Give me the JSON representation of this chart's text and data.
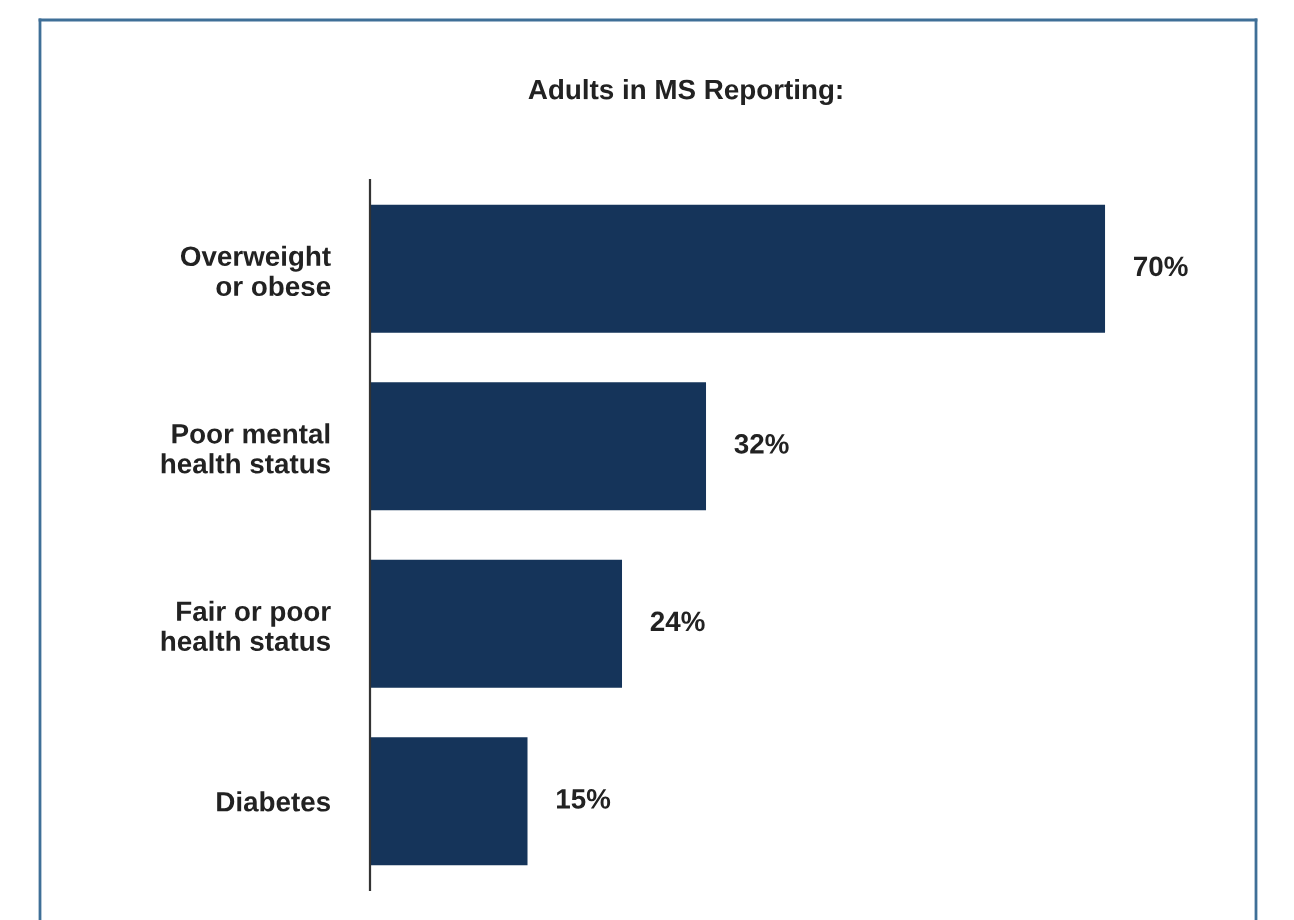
{
  "chart_data": {
    "type": "bar",
    "orientation": "horizontal",
    "title": "Adults in MS Reporting:",
    "categories": [
      "Overweight\nor obese",
      "Poor mental\nhealth status",
      "Fair or poor\nhealth status",
      "Diabetes"
    ],
    "values": [
      70,
      32,
      24,
      15
    ],
    "value_labels": [
      "70%",
      "32%",
      "24%",
      "15%"
    ],
    "color": "#15345a",
    "grid": false,
    "legend": false
  }
}
